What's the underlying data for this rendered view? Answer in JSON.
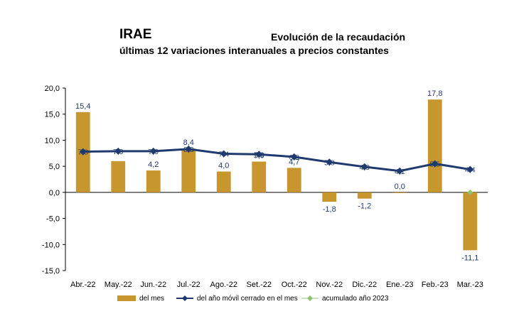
{
  "header": {
    "title": "IRAE",
    "title_right": "Evolución de la recaudación",
    "subtitle": "últimas 12 variaciones interanuales a precios constantes"
  },
  "chart_data": {
    "type": "bar",
    "categories": [
      "Abr.-22",
      "May.-22",
      "Jun.-22",
      "Jul.-22",
      "Ago.-22",
      "Set.-22",
      "Oct.-22",
      "Nov.-22",
      "Dic.-22",
      "Ene.-23",
      "Feb.-23",
      "Mar.-23"
    ],
    "series": [
      {
        "name": "del mes",
        "kind": "bar",
        "color": "#C8962E",
        "values": [
          15.4,
          6.0,
          4.2,
          8.4,
          4.0,
          5.9,
          4.7,
          -1.8,
          -1.2,
          0.0,
          17.8,
          -11.1
        ],
        "labels": [
          "15,4",
          "",
          "4,2",
          "8,4",
          "4,0",
          "5,9",
          "4,7",
          "-1,8",
          "-1,2",
          "0,0",
          "17,8",
          "-11,1"
        ]
      },
      {
        "name": "del año móvil cerrado en el mes",
        "kind": "line",
        "color": "#1F3A6E",
        "values": [
          7.8,
          7.9,
          7.9,
          8.3,
          7.4,
          7.3,
          6.8,
          5.8,
          4.9,
          4.1,
          5.5,
          4.4
        ],
        "labels": [
          "7,8",
          "7,9",
          "7,9",
          "8,3",
          "7,4",
          "7,3",
          "6,8",
          "5,8",
          "4,9",
          "4,1",
          "5,5",
          "4,4"
        ]
      },
      {
        "name": "acumulado año 2023",
        "kind": "point",
        "color": "#8DC26F",
        "values": [
          null,
          null,
          null,
          null,
          null,
          null,
          null,
          null,
          null,
          null,
          null,
          0.0
        ]
      }
    ],
    "ylim": [
      -15,
      20
    ],
    "yticks": [
      "-15,0",
      "-10,0",
      "-5,0",
      "0,0",
      "5,0",
      "10,0",
      "15,0",
      "20,0"
    ],
    "ytick_values": [
      -15,
      -10,
      -5,
      0,
      5,
      10,
      15,
      20
    ],
    "grid": false,
    "legend_position": "bottom"
  }
}
